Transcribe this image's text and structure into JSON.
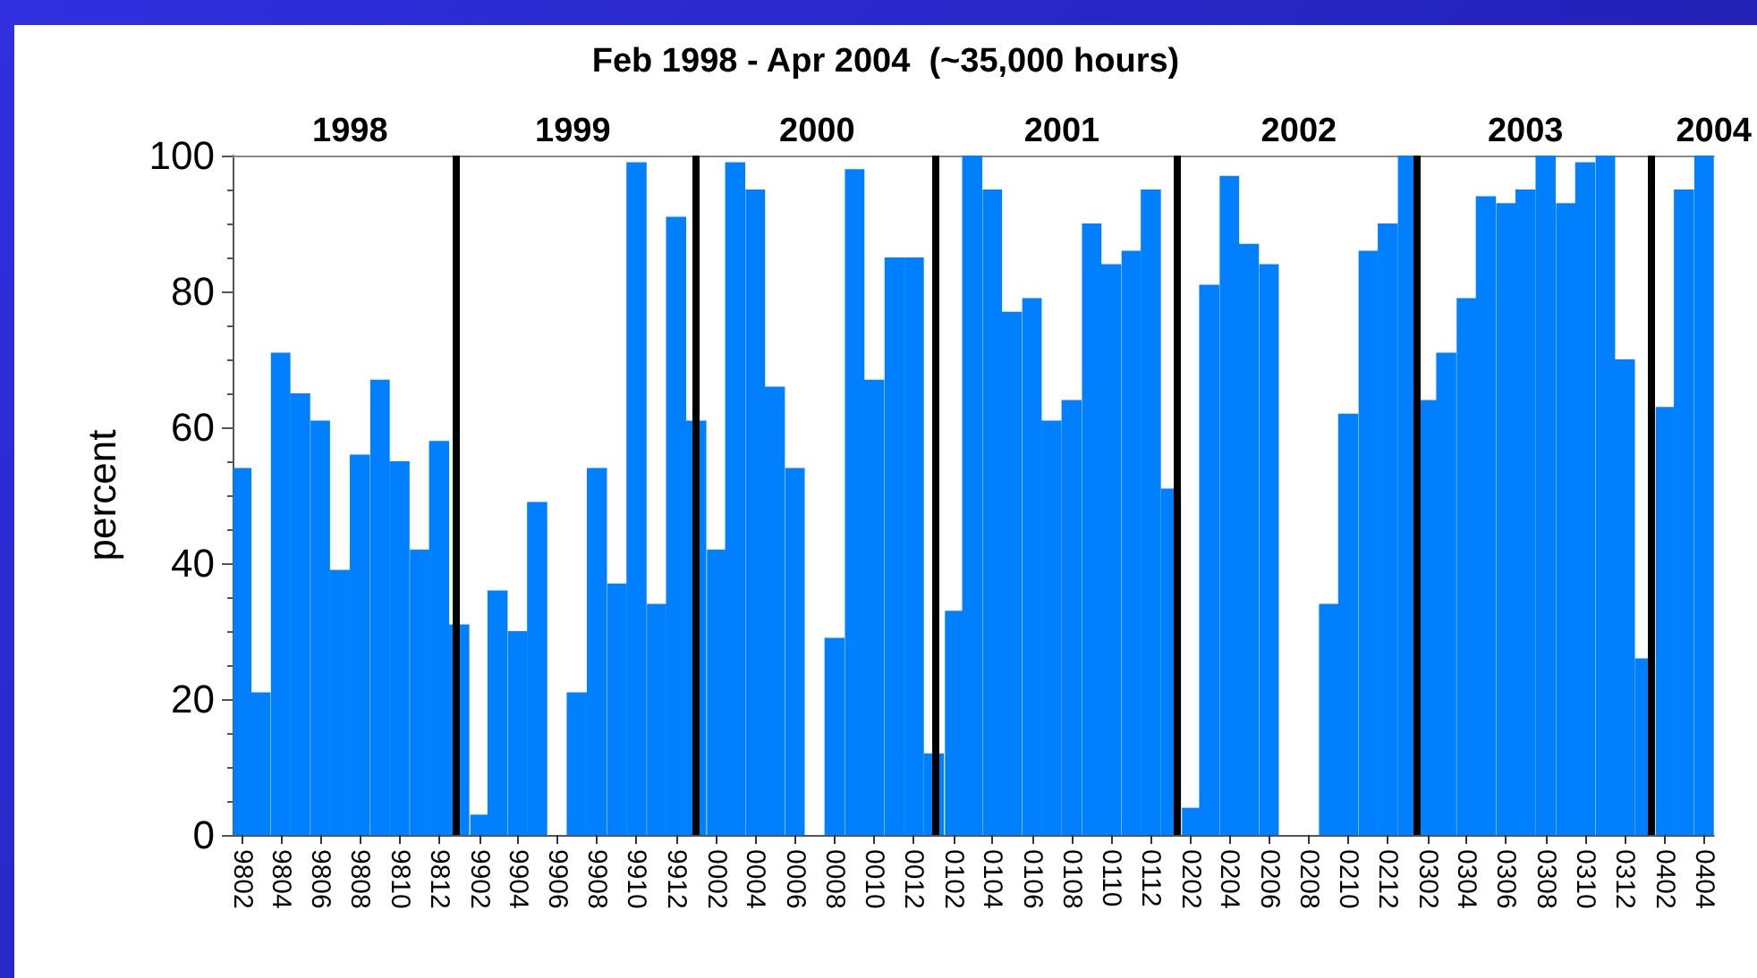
{
  "chart_data": {
    "type": "bar",
    "title": "Feb 1998 - Apr 2004  (~35,000 hours)",
    "ylabel": "percent",
    "color": "#0080ff",
    "x": [
      "1998-02",
      "1998-03",
      "1998-04",
      "1998-05",
      "1998-06",
      "1998-07",
      "1998-08",
      "1998-09",
      "1998-10",
      "1998-11",
      "1998-12",
      "1999-01",
      "1999-02",
      "1999-03",
      "1999-04",
      "1999-05",
      "1999-06",
      "1999-07",
      "1999-08",
      "1999-09",
      "1999-10",
      "1999-11",
      "1999-12",
      "2000-01",
      "2000-02",
      "2000-03",
      "2000-04",
      "2000-05",
      "2000-06",
      "2000-07",
      "2000-08",
      "2000-09",
      "2000-10",
      "2000-11",
      "2000-12",
      "2001-01",
      "2001-02",
      "2001-03",
      "2001-04",
      "2001-05",
      "2001-06",
      "2001-07",
      "2001-08",
      "2001-09",
      "2001-10",
      "2001-11",
      "2001-12",
      "2002-01",
      "2002-02",
      "2002-03",
      "2002-04",
      "2002-05",
      "2002-06",
      "2002-07",
      "2002-08",
      "2002-09",
      "2002-10",
      "2002-11",
      "2002-12",
      "2003-01",
      "2003-02",
      "2003-03",
      "2003-04",
      "2003-05",
      "2003-06",
      "2003-07",
      "2003-08",
      "2003-09",
      "2003-10",
      "2003-11",
      "2003-12",
      "2004-01",
      "2004-02",
      "2004-03",
      "2004-04"
    ],
    "values": [
      54,
      21,
      71,
      65,
      61,
      39,
      56,
      67,
      55,
      42,
      58,
      31,
      3,
      36,
      30,
      49,
      0,
      21,
      54,
      37,
      99,
      34,
      91,
      61,
      42,
      99,
      95,
      66,
      54,
      0,
      29,
      98,
      67,
      85,
      85,
      12,
      33,
      100,
      95,
      77,
      79,
      61,
      64,
      90,
      84,
      86,
      95,
      51,
      4,
      81,
      97,
      87,
      84,
      0,
      0,
      34,
      62,
      86,
      90,
      100,
      64,
      71,
      79,
      94,
      93,
      95,
      100,
      93,
      99,
      100,
      70,
      26,
      63,
      95,
      100
    ],
    "xlim": [
      "1998-01-17",
      "2004-04-16"
    ],
    "xticks": [
      {
        "value": "1998-02",
        "label": "9802"
      },
      {
        "value": "1998-04",
        "label": "9804"
      },
      {
        "value": "1998-06",
        "label": "9806"
      },
      {
        "value": "1998-08",
        "label": "9808"
      },
      {
        "value": "1998-10",
        "label": "9810"
      },
      {
        "value": "1998-12",
        "label": "9812"
      },
      {
        "value": "1999-02",
        "label": "9902"
      },
      {
        "value": "1999-04",
        "label": "9904"
      },
      {
        "value": "1999-06",
        "label": "9906"
      },
      {
        "value": "1999-08",
        "label": "9908"
      },
      {
        "value": "1999-10",
        "label": "9910"
      },
      {
        "value": "1999-12",
        "label": "9912"
      },
      {
        "value": "2000-02",
        "label": "0002"
      },
      {
        "value": "2000-04",
        "label": "0004"
      },
      {
        "value": "2000-06",
        "label": "0006"
      },
      {
        "value": "2000-08",
        "label": "0008"
      },
      {
        "value": "2000-10",
        "label": "0010"
      },
      {
        "value": "2000-12",
        "label": "0012"
      },
      {
        "value": "2001-02",
        "label": "0102"
      },
      {
        "value": "2001-04",
        "label": "0104"
      },
      {
        "value": "2001-06",
        "label": "0106"
      },
      {
        "value": "2001-08",
        "label": "0108"
      },
      {
        "value": "2001-10",
        "label": "0110"
      },
      {
        "value": "2001-12",
        "label": "0112"
      },
      {
        "value": "2002-02",
        "label": "0202"
      },
      {
        "value": "2002-04",
        "label": "0204"
      },
      {
        "value": "2002-06",
        "label": "0206"
      },
      {
        "value": "2002-08",
        "label": "0208"
      },
      {
        "value": "2002-10",
        "label": "0210"
      },
      {
        "value": "2002-12",
        "label": "0212"
      },
      {
        "value": "2003-02",
        "label": "0302"
      },
      {
        "value": "2003-04",
        "label": "0304"
      },
      {
        "value": "2003-06",
        "label": "0306"
      },
      {
        "value": "2003-08",
        "label": "0308"
      },
      {
        "value": "2003-10",
        "label": "0310"
      },
      {
        "value": "2003-12",
        "label": "0312"
      },
      {
        "value": "2004-02",
        "label": "0402"
      },
      {
        "value": "2004-04",
        "label": "0404"
      }
    ],
    "x2lim": [
      "1998-01-17",
      "2004-04-16"
    ],
    "x2ticks": [
      {
        "value": "1998-07-17",
        "label": "1998"
      },
      {
        "value": "1999-06-25",
        "label": "1999"
      },
      {
        "value": "2000-07-05",
        "label": "2000"
      },
      {
        "value": "2001-07-17",
        "label": "2001"
      },
      {
        "value": "2002-07-17",
        "label": "2002"
      },
      {
        "value": "2003-07-01",
        "label": "2003"
      },
      {
        "value": "2004-04-16",
        "label": "2004"
      }
    ],
    "ylim": [
      0,
      100
    ],
    "yticks": [
      0,
      20,
      40,
      60,
      80,
      100
    ],
    "ref_lines": [
      {
        "axis": "x",
        "value": "1998-12-26",
        "color": "#000000"
      },
      {
        "axis": "x",
        "value": "1999-12-31",
        "color": "#000000"
      },
      {
        "axis": "x",
        "value": "2001-01-03",
        "color": "#000000"
      },
      {
        "axis": "x",
        "value": "2002-01-09",
        "color": "#000000"
      },
      {
        "axis": "x",
        "value": "2003-01-13",
        "color": "#000000"
      },
      {
        "axis": "x",
        "value": "2004-01-09",
        "color": "#000000"
      }
    ]
  }
}
